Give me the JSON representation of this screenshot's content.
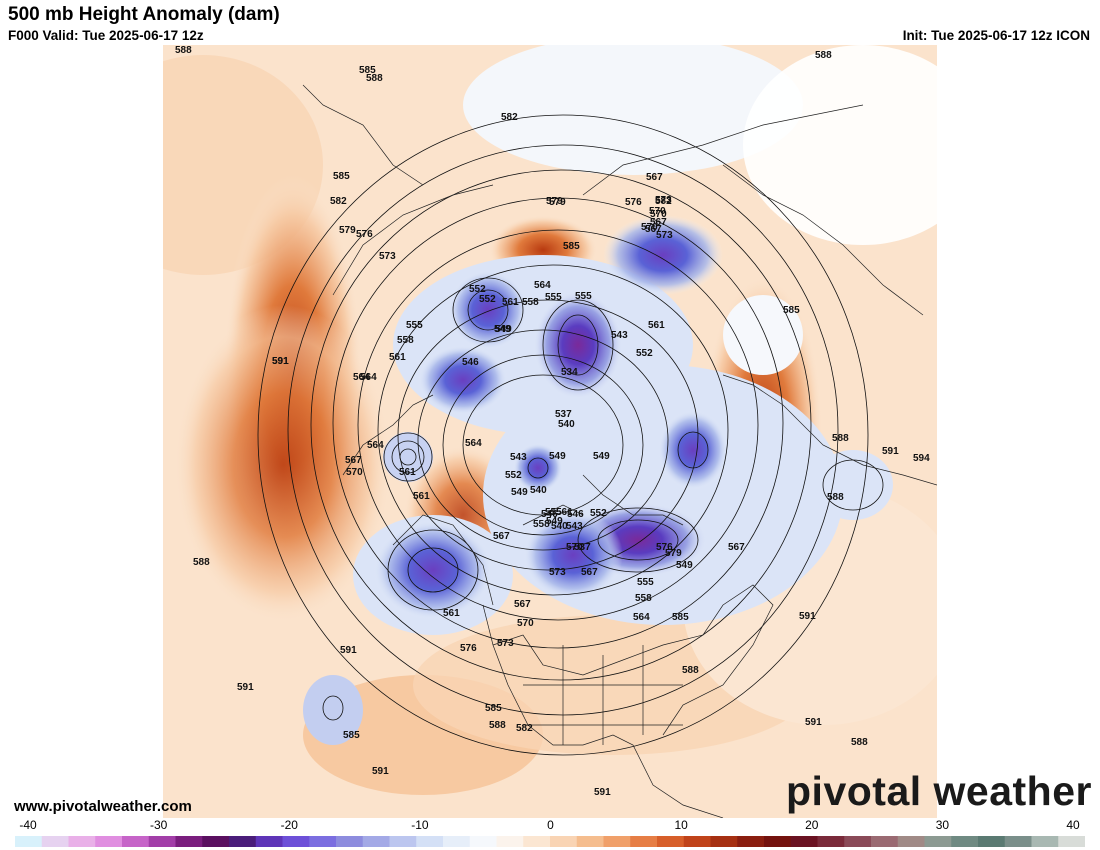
{
  "header": {
    "title": "500 mb Height Anomaly (dam)",
    "valid": "F000 Valid: Tue 2025-06-17 12z",
    "init": "Init: Tue 2025-06-17 12z ICON"
  },
  "footer": {
    "site": "www.pivotalweather.com",
    "brand": "pivotal weather"
  },
  "colorbar": {
    "ticks": [
      "-40",
      "-30",
      "-20",
      "-10",
      "0",
      "10",
      "20",
      "30",
      "40"
    ],
    "colors": [
      "#d8f1fb",
      "#e6d2f0",
      "#e9b0e8",
      "#e08ee0",
      "#c664c8",
      "#a23ea8",
      "#7a1e7e",
      "#5a1060",
      "#4a1d7a",
      "#5e35b8",
      "#6d50d8",
      "#7b6ee0",
      "#8d8cde",
      "#a3a9e6",
      "#bcc6ef",
      "#d4e0f6",
      "#e6eef9",
      "#f5f8fc",
      "#fbf3ec",
      "#fbe6d2",
      "#f9d4b4",
      "#f5bd8e",
      "#f0a06a",
      "#e67e45",
      "#d75f2a",
      "#c0431a",
      "#a63012",
      "#8a1e10",
      "#74120e",
      "#6a1222",
      "#7a2a3a",
      "#8a4a58",
      "#9a6a72",
      "#a08a86",
      "#8c9a92",
      "#6f8a82",
      "#5a7a72",
      "#7a8f8a",
      "#a8b8b2",
      "#d8dcd8"
    ]
  },
  "contour_labels": [
    "588",
    "585",
    "588",
    "588",
    "582",
    "585",
    "582",
    "579",
    "576",
    "570",
    "567",
    "573",
    "570",
    "567",
    "582",
    "579",
    "576",
    "573",
    "585",
    "579",
    "564",
    "561",
    "558",
    "555",
    "552",
    "549",
    "573",
    "570",
    "567",
    "591",
    "564",
    "561",
    "558",
    "555",
    "555",
    "552",
    "549",
    "546",
    "543",
    "534",
    "537",
    "540",
    "561",
    "552",
    "585",
    "591",
    "564",
    "567",
    "570",
    "564",
    "561",
    "543",
    "549",
    "552",
    "540",
    "546",
    "549",
    "549",
    "588",
    "591",
    "594",
    "588",
    "561",
    "564",
    "567",
    "567",
    "549",
    "558",
    "555",
    "561",
    "540",
    "543",
    "537",
    "546",
    "552",
    "549",
    "555",
    "558",
    "564",
    "567",
    "570",
    "573",
    "561",
    "567",
    "570",
    "576",
    "579",
    "585",
    "588",
    "591",
    "591",
    "591",
    "573",
    "576",
    "585",
    "582",
    "588",
    "591",
    "588",
    "585",
    "591",
    "591",
    "588"
  ],
  "map_legend_icons": [
    "world-map-icon"
  ]
}
